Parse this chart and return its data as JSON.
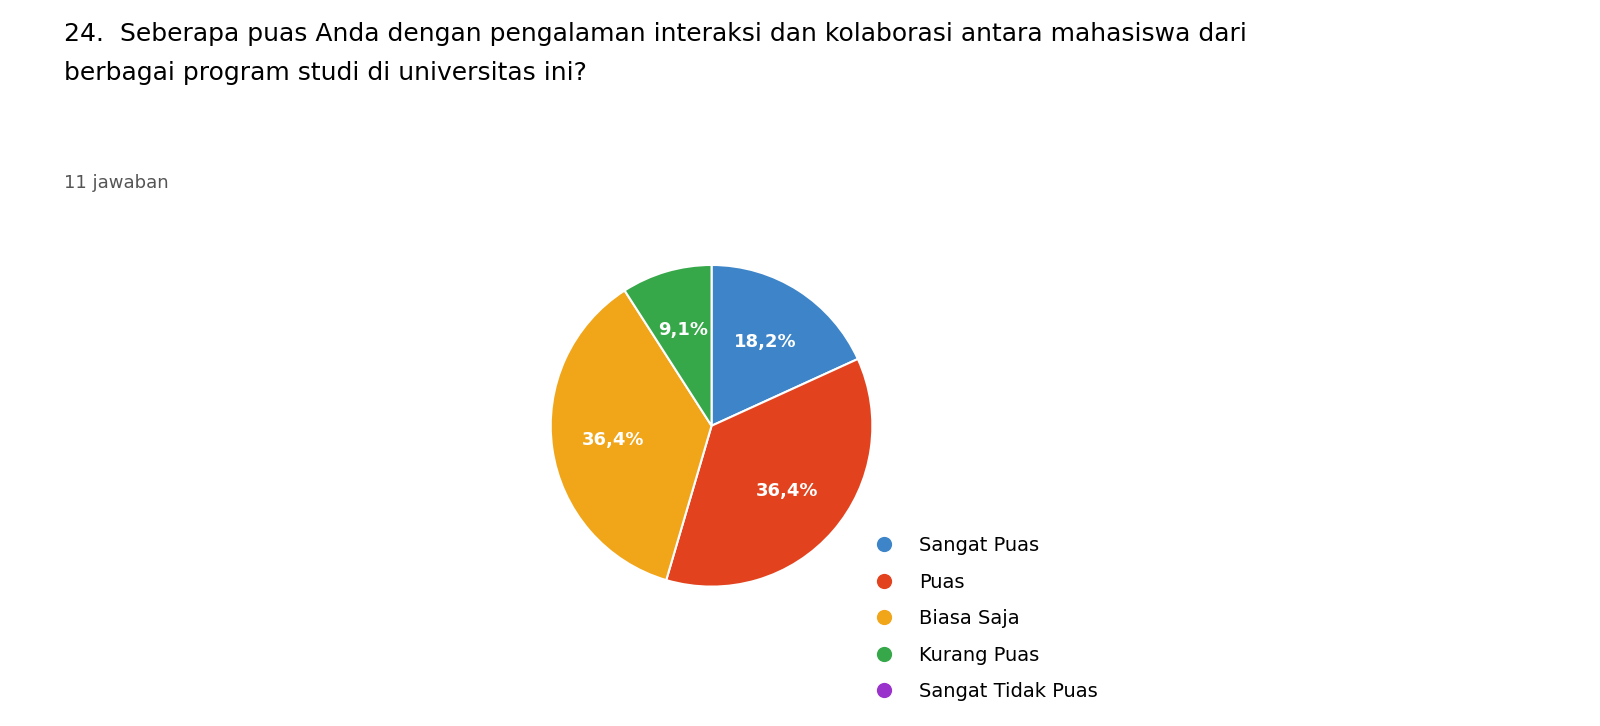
{
  "title": "24.  Seberapa puas Anda dengan pengalaman interaksi dan kolaborasi antara mahasiswa dari\nberbagai program studi di universitas ini?",
  "subtitle": "11 jawaban",
  "labels": [
    "Sangat Puas",
    "Puas",
    "Biasa Saja",
    "Kurang Puas",
    "Sangat Tidak Puas"
  ],
  "values": [
    18.2,
    36.4,
    36.4,
    9.1,
    0.0
  ],
  "colors": [
    "#3d85c8",
    "#e2431e",
    "#f1a519",
    "#36a849",
    "#9933cc"
  ],
  "pct_labels": [
    "18,2%",
    "36,4%",
    "36,4%",
    "9,1%",
    ""
  ],
  "background_color": "#ffffff",
  "title_fontsize": 18,
  "subtitle_fontsize": 13,
  "legend_fontsize": 14
}
